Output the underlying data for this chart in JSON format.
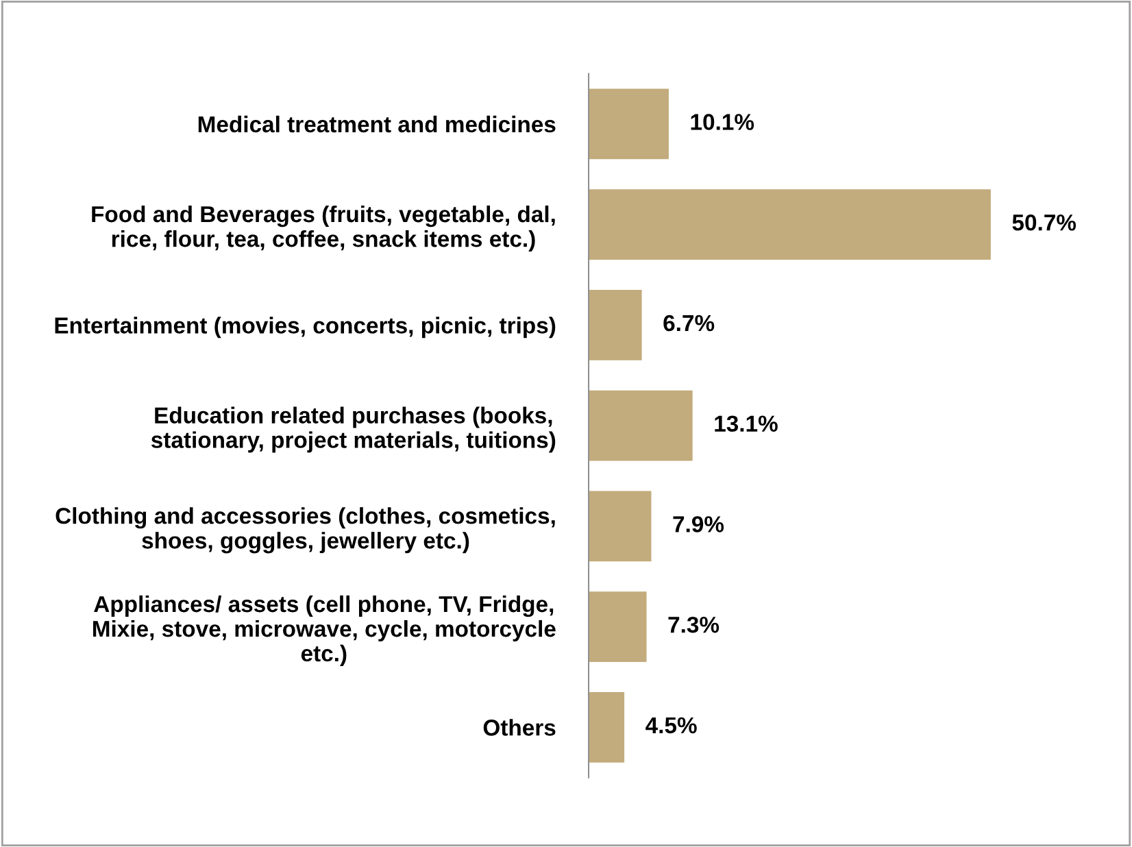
{
  "chart_data": {
    "type": "bar",
    "orientation": "horizontal",
    "categories": [
      "Medical treatment and medicines",
      "Food and Beverages (fruits, vegetable, dal,\nrice, flour, tea, coffee, snack items etc.)",
      "Entertainment (movies, concerts, picnic, trips)",
      "Education related purchases (books,\nstationary, project materials, tuitions)",
      "Clothing and accessories (clothes, cosmetics,\nshoes, goggles, jewellery etc.)",
      "Appliances/ assets (cell phone, TV, Fridge,\nMixie, stove, microwave, cycle, motorcycle\netc.)",
      "Others"
    ],
    "values": [
      10.1,
      50.7,
      6.7,
      13.1,
      7.9,
      7.3,
      4.5
    ],
    "value_labels": [
      "10.1%",
      "50.7%",
      "6.7%",
      "13.1%",
      "7.9%",
      "7.3%",
      "4.5%"
    ],
    "color": "#c2ab7c",
    "tick_labels": "y"
  }
}
